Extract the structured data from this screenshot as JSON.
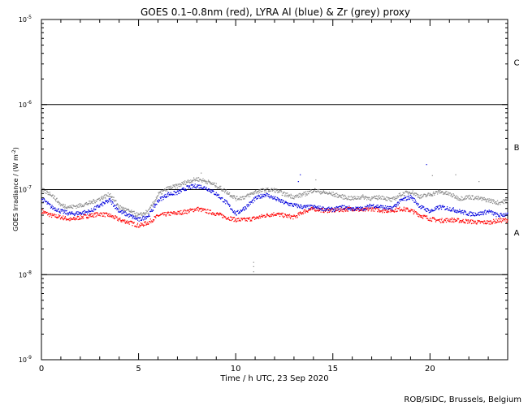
{
  "chart_data": {
    "type": "scatter",
    "title": "GOES 0.1–0.8nm (red), LYRA Al (blue) & Zr (grey) proxy",
    "xlabel": "Time / h UTC, 23 Sep 2020",
    "ylabel_main": "GOES Irradiance / (W m",
    "ylabel_sup": "-2",
    "ylabel_end": ")",
    "xlim": [
      0,
      24
    ],
    "ylim_log10": [
      -9,
      -5
    ],
    "log_scale_y": true,
    "x_ticks": [
      {
        "value": 0,
        "label": "0"
      },
      {
        "value": 5,
        "label": "5"
      },
      {
        "value": 10,
        "label": "10"
      },
      {
        "value": 15,
        "label": "15"
      },
      {
        "value": 20,
        "label": "20"
      }
    ],
    "y_ticks": [
      {
        "exp": -9,
        "base": "10",
        "sup": "-9"
      },
      {
        "exp": -8,
        "base": "10",
        "sup": "-8"
      },
      {
        "exp": -7,
        "base": "10",
        "sup": "-7"
      },
      {
        "exp": -6,
        "base": "10",
        "sup": "-6"
      },
      {
        "exp": -5,
        "base": "10",
        "sup": "-5"
      }
    ],
    "flare_class_lines": [
      -8,
      -7,
      -6
    ],
    "flare_classes": [
      {
        "label": "A",
        "log_center": -7.5
      },
      {
        "label": "B",
        "log_center": -6.5
      },
      {
        "label": "C",
        "log_center": -5.5
      }
    ],
    "series": [
      {
        "color": "#ff0000",
        "outliers": [],
        "points": [
          [
            0,
            -7.25
          ],
          [
            0.5,
            -7.3
          ],
          [
            1,
            -7.32
          ],
          [
            1.5,
            -7.35
          ],
          [
            2,
            -7.32
          ],
          [
            2.5,
            -7.3
          ],
          [
            3,
            -7.28
          ],
          [
            3.5,
            -7.3
          ],
          [
            4,
            -7.35
          ],
          [
            4.5,
            -7.38
          ],
          [
            5,
            -7.42
          ],
          [
            5.5,
            -7.38
          ],
          [
            6,
            -7.3
          ],
          [
            6.5,
            -7.28
          ],
          [
            7,
            -7.27
          ],
          [
            7.5,
            -7.25
          ],
          [
            8,
            -7.22
          ],
          [
            8.5,
            -7.25
          ],
          [
            9,
            -7.28
          ],
          [
            9.5,
            -7.32
          ],
          [
            10,
            -7.35
          ],
          [
            10.5,
            -7.35
          ],
          [
            11,
            -7.33
          ],
          [
            11.5,
            -7.3
          ],
          [
            12,
            -7.28
          ],
          [
            12.5,
            -7.3
          ],
          [
            13,
            -7.32
          ],
          [
            13.5,
            -7.25
          ],
          [
            14,
            -7.22
          ],
          [
            14.5,
            -7.24
          ],
          [
            15,
            -7.24
          ],
          [
            15.5,
            -7.23
          ],
          [
            16,
            -7.22
          ],
          [
            16.5,
            -7.24
          ],
          [
            17,
            -7.22
          ],
          [
            17.5,
            -7.24
          ],
          [
            18,
            -7.24
          ],
          [
            18.5,
            -7.22
          ],
          [
            19,
            -7.24
          ],
          [
            19.5,
            -7.3
          ],
          [
            20,
            -7.34
          ],
          [
            20.5,
            -7.36
          ],
          [
            21,
            -7.35
          ],
          [
            21.5,
            -7.36
          ],
          [
            22,
            -7.37
          ],
          [
            22.5,
            -7.38
          ],
          [
            23,
            -7.38
          ],
          [
            23.5,
            -7.36
          ],
          [
            24,
            -7.35
          ]
        ]
      },
      {
        "color": "#0000dd",
        "outliers": [
          [
            13.2,
            -6.9
          ],
          [
            13.3,
            -6.82
          ],
          [
            19.8,
            -6.7
          ]
        ],
        "points": [
          [
            0,
            -7.1
          ],
          [
            0.5,
            -7.2
          ],
          [
            1,
            -7.25
          ],
          [
            1.5,
            -7.28
          ],
          [
            2,
            -7.27
          ],
          [
            2.5,
            -7.25
          ],
          [
            3,
            -7.18
          ],
          [
            3.5,
            -7.12
          ],
          [
            4,
            -7.25
          ],
          [
            4.5,
            -7.3
          ],
          [
            5,
            -7.35
          ],
          [
            5.5,
            -7.3
          ],
          [
            6,
            -7.12
          ],
          [
            6.5,
            -7.05
          ],
          [
            7,
            -7.03
          ],
          [
            7.5,
            -6.97
          ],
          [
            8,
            -6.95
          ],
          [
            8.5,
            -6.98
          ],
          [
            9,
            -7.05
          ],
          [
            9.5,
            -7.15
          ],
          [
            10,
            -7.28
          ],
          [
            10.5,
            -7.2
          ],
          [
            11,
            -7.1
          ],
          [
            11.5,
            -7.05
          ],
          [
            12,
            -7.1
          ],
          [
            12.5,
            -7.15
          ],
          [
            13,
            -7.18
          ],
          [
            13.5,
            -7.2
          ],
          [
            14,
            -7.2
          ],
          [
            14.5,
            -7.22
          ],
          [
            15,
            -7.23
          ],
          [
            15.5,
            -7.2
          ],
          [
            16,
            -7.22
          ],
          [
            16.5,
            -7.22
          ],
          [
            17,
            -7.18
          ],
          [
            17.5,
            -7.2
          ],
          [
            18,
            -7.22
          ],
          [
            18.5,
            -7.12
          ],
          [
            19,
            -7.08
          ],
          [
            19.5,
            -7.2
          ],
          [
            20,
            -7.25
          ],
          [
            20.5,
            -7.2
          ],
          [
            21,
            -7.22
          ],
          [
            21.5,
            -7.25
          ],
          [
            22,
            -7.28
          ],
          [
            22.5,
            -7.28
          ],
          [
            23,
            -7.25
          ],
          [
            23.5,
            -7.3
          ],
          [
            24,
            -7.28
          ]
        ]
      },
      {
        "color": "#888888",
        "outliers": [
          [
            8.2,
            -6.8
          ],
          [
            10.9,
            -7.85
          ],
          [
            10.9,
            -7.9
          ],
          [
            10.9,
            -7.96
          ],
          [
            14.1,
            -6.88
          ],
          [
            20.1,
            -6.83
          ],
          [
            21.3,
            -6.82
          ],
          [
            22.5,
            -6.9
          ]
        ],
        "points": [
          [
            0,
            -7.0
          ],
          [
            0.5,
            -7.05
          ],
          [
            1,
            -7.18
          ],
          [
            1.5,
            -7.2
          ],
          [
            2,
            -7.18
          ],
          [
            2.5,
            -7.15
          ],
          [
            3,
            -7.1
          ],
          [
            3.5,
            -7.05
          ],
          [
            4,
            -7.2
          ],
          [
            4.5,
            -7.25
          ],
          [
            5,
            -7.3
          ],
          [
            5.5,
            -7.25
          ],
          [
            6,
            -7.05
          ],
          [
            6.5,
            -6.98
          ],
          [
            7,
            -6.95
          ],
          [
            7.5,
            -6.9
          ],
          [
            8,
            -6.87
          ],
          [
            8.5,
            -6.9
          ],
          [
            9,
            -6.95
          ],
          [
            9.5,
            -7.02
          ],
          [
            10,
            -7.1
          ],
          [
            10.5,
            -7.08
          ],
          [
            11,
            -7.02
          ],
          [
            11.5,
            -7.0
          ],
          [
            12,
            -7.0
          ],
          [
            12.5,
            -7.05
          ],
          [
            13,
            -7.08
          ],
          [
            13.5,
            -7.05
          ],
          [
            14,
            -7.0
          ],
          [
            14.5,
            -7.03
          ],
          [
            15,
            -7.05
          ],
          [
            15.5,
            -7.08
          ],
          [
            16,
            -7.1
          ],
          [
            16.5,
            -7.08
          ],
          [
            17,
            -7.1
          ],
          [
            17.5,
            -7.08
          ],
          [
            18,
            -7.12
          ],
          [
            18.5,
            -7.05
          ],
          [
            19,
            -7.02
          ],
          [
            19.5,
            -7.08
          ],
          [
            20,
            -7.05
          ],
          [
            20.5,
            -7.02
          ],
          [
            21,
            -7.05
          ],
          [
            21.5,
            -7.1
          ],
          [
            22,
            -7.08
          ],
          [
            22.5,
            -7.1
          ],
          [
            23,
            -7.12
          ],
          [
            23.5,
            -7.15
          ],
          [
            24,
            -7.12
          ]
        ]
      }
    ],
    "footer": "ROB/SIDC, Brussels, Belgium"
  }
}
